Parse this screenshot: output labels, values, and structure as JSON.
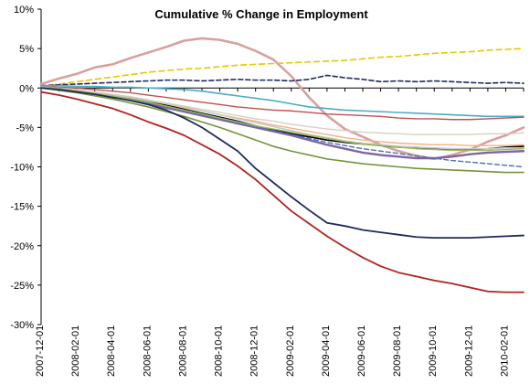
{
  "chart_data": {
    "type": "line",
    "title": "Cumulative % Change in Employment",
    "xlabel": "",
    "ylabel": "",
    "ylim": [
      -30,
      10
    ],
    "yticks": [
      10,
      5,
      0,
      -5,
      -10,
      -15,
      -20,
      -25,
      -30
    ],
    "ytick_labels": [
      "10%",
      "5%",
      "0%",
      "-5%",
      "-10%",
      "-15%",
      "-20%",
      "-25%",
      "-30%"
    ],
    "xtick_labels": [
      "2007-12-01",
      "2008-02-01",
      "2008-04-01",
      "2008-06-01",
      "2008-08-01",
      "2008-10-01",
      "2008-12-01",
      "2009-02-01",
      "2009-04-01",
      "2009-06-01",
      "2009-08-01",
      "2009-10-01",
      "2009-12-01",
      "2010-02-01"
    ],
    "x": [
      "2007-12",
      "2008-01",
      "2008-02",
      "2008-03",
      "2008-04",
      "2008-05",
      "2008-06",
      "2008-07",
      "2008-08",
      "2008-09",
      "2008-10",
      "2008-11",
      "2008-12",
      "2009-01",
      "2009-02",
      "2009-03",
      "2009-04",
      "2009-05",
      "2009-06",
      "2009-07",
      "2009-08",
      "2009-09",
      "2009-10",
      "2009-11",
      "2009-12",
      "2010-01",
      "2010-02",
      "2010-03"
    ],
    "grid": false,
    "legend": "none",
    "series": [
      {
        "color": "#d9a0a0",
        "dash": "solid",
        "width": 2.6,
        "values": [
          0.5,
          1.2,
          1.8,
          2.6,
          3.0,
          3.8,
          4.5,
          5.2,
          6.0,
          6.3,
          6.1,
          5.6,
          4.7,
          3.6,
          1.5,
          -1.2,
          -3.5,
          -5.2,
          -6.2,
          -7.2,
          -8.0,
          -8.6,
          -9.0,
          -8.5,
          -7.8,
          -6.8,
          -6.0,
          -5.0
        ]
      },
      {
        "color": "#e6c800",
        "dash": "6,4",
        "width": 1.6,
        "values": [
          0.2,
          0.5,
          0.8,
          1.1,
          1.4,
          1.7,
          2.0,
          2.2,
          2.4,
          2.5,
          2.7,
          2.9,
          3.0,
          3.1,
          3.2,
          3.3,
          3.4,
          3.5,
          3.7,
          3.9,
          4.0,
          4.2,
          4.4,
          4.5,
          4.6,
          4.8,
          4.9,
          5.0
        ]
      },
      {
        "color": "#1f2a5c",
        "dash": "5,3",
        "width": 1.6,
        "values": [
          0.3,
          0.4,
          0.5,
          0.6,
          0.7,
          0.8,
          0.9,
          1.0,
          1.0,
          0.9,
          1.0,
          1.1,
          1.0,
          1.0,
          0.9,
          1.1,
          1.6,
          1.3,
          1.1,
          0.8,
          0.9,
          0.8,
          0.9,
          0.8,
          0.7,
          0.6,
          0.7,
          0.6
        ]
      },
      {
        "color": "#4bacc6",
        "dash": "solid",
        "width": 1.6,
        "values": [
          0.3,
          0.3,
          0.2,
          0.2,
          0.1,
          0.1,
          0.0,
          -0.1,
          -0.2,
          -0.4,
          -0.7,
          -1.0,
          -1.3,
          -1.6,
          -2.0,
          -2.4,
          -2.6,
          -2.8,
          -2.9,
          -3.0,
          -3.1,
          -3.2,
          -3.3,
          -3.4,
          -3.5,
          -3.6,
          -3.6,
          -3.6
        ]
      },
      {
        "color": "#c0504d",
        "dash": "solid",
        "width": 1.4,
        "values": [
          0.2,
          0.1,
          0.0,
          -0.2,
          -0.4,
          -0.6,
          -0.9,
          -1.2,
          -1.5,
          -1.8,
          -2.1,
          -2.4,
          -2.6,
          -2.8,
          -2.9,
          -3.1,
          -3.3,
          -3.4,
          -3.5,
          -3.6,
          -3.8,
          -3.9,
          -3.9,
          -4.0,
          -4.0,
          -3.9,
          -3.8,
          -3.7
        ]
      },
      {
        "color": "#d8d0c0",
        "dash": "solid",
        "width": 1.4,
        "values": [
          0.2,
          0.0,
          -0.2,
          -0.5,
          -0.8,
          -1.1,
          -1.5,
          -1.9,
          -2.3,
          -2.7,
          -3.1,
          -3.5,
          -3.9,
          -4.2,
          -4.6,
          -4.9,
          -5.2,
          -5.4,
          -5.6,
          -5.7,
          -5.8,
          -5.9,
          -5.9,
          -5.9,
          -5.9,
          -5.8,
          -5.8,
          -5.7
        ]
      },
      {
        "color": "#f4b183",
        "dash": "solid",
        "width": 1.4,
        "values": [
          0.1,
          -0.1,
          -0.4,
          -0.7,
          -1.0,
          -1.3,
          -1.7,
          -2.1,
          -2.5,
          -2.9,
          -3.4,
          -3.8,
          -4.2,
          -4.7,
          -5.1,
          -5.5,
          -5.9,
          -6.3,
          -6.6,
          -6.8,
          -7.0,
          -7.1,
          -7.2,
          -7.2,
          -7.3,
          -7.3,
          -7.3,
          -7.2
        ]
      },
      {
        "color": "#000000",
        "dash": "solid",
        "width": 1.6,
        "values": [
          0.1,
          -0.1,
          -0.4,
          -0.7,
          -1.0,
          -1.4,
          -1.8,
          -2.2,
          -2.7,
          -3.2,
          -3.7,
          -4.2,
          -4.8,
          -5.3,
          -5.8,
          -6.2,
          -6.6,
          -6.9,
          -7.1,
          -7.3,
          -7.5,
          -7.6,
          -7.7,
          -7.8,
          -7.8,
          -7.7,
          -7.5,
          -7.4
        ]
      },
      {
        "color": "#8064a2",
        "dash": "solid",
        "width": 2.4,
        "values": [
          0.1,
          -0.1,
          -0.4,
          -0.7,
          -1.1,
          -1.5,
          -2.0,
          -2.5,
          -3.0,
          -3.5,
          -4.0,
          -4.5,
          -5.0,
          -5.5,
          -6.0,
          -6.6,
          -7.2,
          -7.7,
          -8.2,
          -8.5,
          -8.7,
          -8.9,
          -8.9,
          -8.7,
          -8.4,
          -8.2,
          -8.1,
          -8.0
        ]
      },
      {
        "color": "#4f6fb0",
        "dash": "5,3",
        "width": 1.4,
        "values": [
          0.0,
          -0.2,
          -0.5,
          -0.8,
          -1.1,
          -1.5,
          -1.9,
          -2.4,
          -2.9,
          -3.4,
          -3.9,
          -4.4,
          -4.9,
          -5.4,
          -5.9,
          -6.4,
          -6.9,
          -7.3,
          -7.7,
          -8.0,
          -8.3,
          -8.6,
          -8.9,
          -9.2,
          -9.4,
          -9.6,
          -9.8,
          -10.0
        ]
      },
      {
        "color": "#77933c",
        "dash": "solid",
        "width": 1.6,
        "values": [
          0.0,
          -0.3,
          -0.6,
          -1.0,
          -1.4,
          -1.9,
          -2.4,
          -3.0,
          -3.6,
          -4.3,
          -5.0,
          -5.8,
          -6.6,
          -7.4,
          -8.0,
          -8.5,
          -9.0,
          -9.3,
          -9.6,
          -9.8,
          -10.0,
          -10.2,
          -10.3,
          -10.4,
          -10.5,
          -10.6,
          -10.7,
          -10.7
        ]
      },
      {
        "color": "#c9c9c9",
        "dash": "solid",
        "width": 1.6,
        "values": [
          0.1,
          -0.1,
          -0.3,
          -0.6,
          -0.9,
          -1.2,
          -1.6,
          -2.0,
          -2.4,
          -2.9,
          -3.4,
          -3.9,
          -4.4,
          -4.9,
          -5.4,
          -5.9,
          -6.3,
          -6.7,
          -7.0,
          -7.2,
          -7.4,
          -7.5,
          -7.6,
          -7.7,
          -7.7,
          -7.7,
          -7.6,
          -7.6
        ]
      },
      {
        "color": "#9bbb59",
        "dash": "solid",
        "width": 1.4,
        "values": [
          0.1,
          -0.1,
          -0.4,
          -0.7,
          -1.0,
          -1.4,
          -1.8,
          -2.3,
          -2.8,
          -3.3,
          -3.8,
          -4.3,
          -4.8,
          -5.2,
          -5.6,
          -6.0,
          -6.4,
          -6.8,
          -7.1,
          -7.3,
          -7.5,
          -7.7,
          -7.8,
          -7.9,
          -7.9,
          -7.9,
          -7.8,
          -7.7
        ]
      },
      {
        "color": "#1f2a5c",
        "dash": "solid",
        "width": 1.8,
        "values": [
          0.0,
          -0.2,
          -0.5,
          -0.8,
          -1.2,
          -1.6,
          -2.1,
          -2.8,
          -3.8,
          -5.0,
          -6.5,
          -8.0,
          -10.2,
          -12.0,
          -13.8,
          -15.5,
          -17.1,
          -17.5,
          -18.0,
          -18.3,
          -18.6,
          -18.9,
          -19.0,
          -19.0,
          -19.0,
          -18.9,
          -18.8,
          -18.7
        ]
      },
      {
        "color": "#b22222",
        "dash": "solid",
        "width": 1.8,
        "values": [
          -0.5,
          -0.9,
          -1.4,
          -2.0,
          -2.6,
          -3.4,
          -4.3,
          -5.1,
          -6.0,
          -7.2,
          -8.4,
          -9.9,
          -11.6,
          -13.6,
          -15.6,
          -17.2,
          -18.8,
          -20.2,
          -21.5,
          -22.6,
          -23.4,
          -23.9,
          -24.4,
          -24.8,
          -25.3,
          -25.8,
          -25.9,
          -25.9
        ]
      }
    ]
  }
}
